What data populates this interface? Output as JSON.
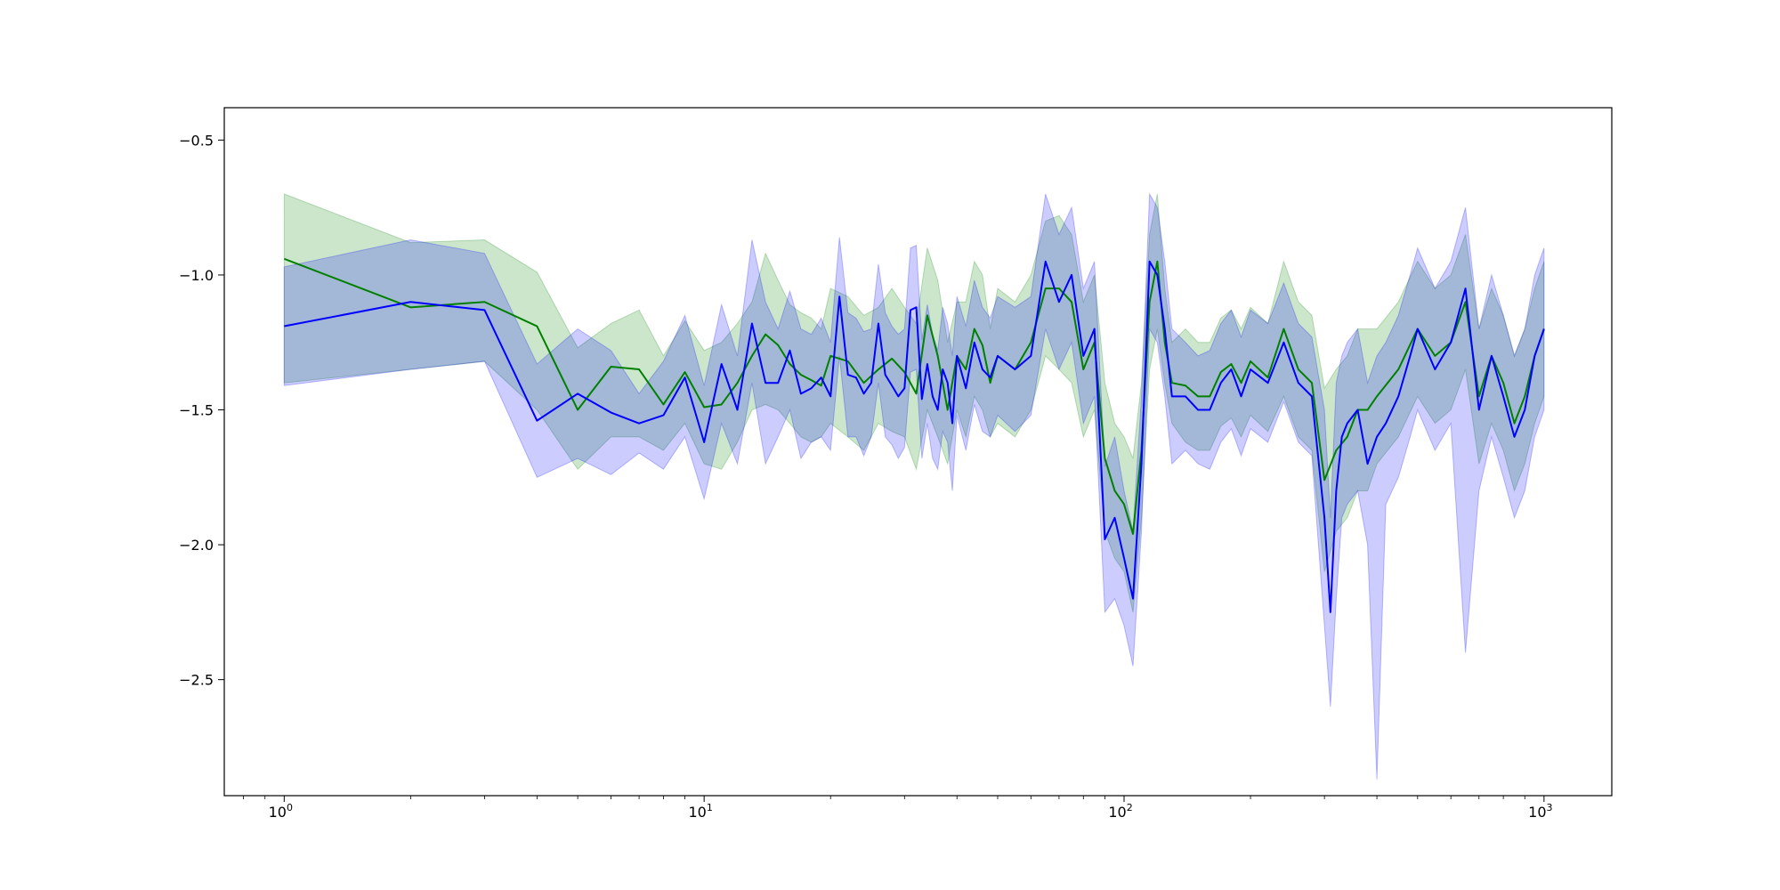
{
  "chart_data": {
    "type": "line",
    "xscale": "log",
    "xlim": [
      0.72,
      1450
    ],
    "ylim": [
      -2.93,
      -0.38
    ],
    "grid": false,
    "legend": "none",
    "title": "",
    "xlabel": "",
    "ylabel": "",
    "x_ticks": [
      {
        "base": "10",
        "exp": "0",
        "value": 1
      },
      {
        "base": "10",
        "exp": "1",
        "value": 10
      },
      {
        "base": "10",
        "exp": "2",
        "value": 100
      },
      {
        "base": "10",
        "exp": "3",
        "value": 1000
      }
    ],
    "y_ticks": [
      {
        "label": "−0.5",
        "value": -0.5
      },
      {
        "label": "−1.0",
        "value": -1.0
      },
      {
        "label": "−1.5",
        "value": -1.5
      },
      {
        "label": "−2.0",
        "value": -2.0
      },
      {
        "label": "−2.5",
        "value": -2.5
      }
    ],
    "colors": {
      "green_line": "#008000",
      "green_band": "#008000",
      "blue_line": "#0000ff",
      "blue_band": "#0000ff"
    },
    "series": [
      {
        "color": "green",
        "x": [
          1,
          2,
          3,
          4,
          5,
          6,
          7,
          8,
          9,
          10,
          11,
          12,
          13,
          14,
          15,
          16,
          17,
          18,
          19,
          20,
          22,
          24,
          26,
          28,
          30,
          32,
          34,
          36,
          38,
          40,
          42,
          44,
          46,
          48,
          50,
          55,
          60,
          65,
          70,
          75,
          80,
          85,
          90,
          95,
          100,
          105,
          110,
          115,
          120,
          125,
          130,
          140,
          150,
          160,
          170,
          180,
          190,
          200,
          220,
          240,
          260,
          280,
          300,
          320,
          340,
          360,
          380,
          400,
          450,
          500,
          550,
          600,
          650,
          700,
          750,
          800,
          850,
          900,
          950,
          1000
        ],
        "y": [
          -0.94,
          -1.12,
          -1.1,
          -1.19,
          -1.5,
          -1.34,
          -1.35,
          -1.48,
          -1.36,
          -1.49,
          -1.48,
          -1.4,
          -1.3,
          -1.22,
          -1.26,
          -1.33,
          -1.37,
          -1.39,
          -1.41,
          -1.3,
          -1.32,
          -1.4,
          -1.35,
          -1.31,
          -1.36,
          -1.44,
          -1.15,
          -1.3,
          -1.5,
          -1.3,
          -1.35,
          -1.2,
          -1.26,
          -1.4,
          -1.3,
          -1.35,
          -1.25,
          -1.05,
          -1.05,
          -1.1,
          -1.35,
          -1.25,
          -1.68,
          -1.8,
          -1.85,
          -1.96,
          -1.65,
          -1.1,
          -0.95,
          -1.25,
          -1.4,
          -1.41,
          -1.45,
          -1.45,
          -1.36,
          -1.33,
          -1.4,
          -1.32,
          -1.38,
          -1.2,
          -1.35,
          -1.4,
          -1.76,
          -1.65,
          -1.6,
          -1.5,
          -1.5,
          -1.45,
          -1.35,
          -1.2,
          -1.3,
          -1.25,
          -1.1,
          -1.45,
          -1.3,
          -1.4,
          -1.55,
          -1.45,
          -1.3,
          -1.2
        ],
        "lower": [
          -1.4,
          -1.35,
          -1.32,
          -1.5,
          -1.72,
          -1.6,
          -1.6,
          -1.65,
          -1.55,
          -1.7,
          -1.72,
          -1.62,
          -1.5,
          -1.48,
          -1.5,
          -1.55,
          -1.6,
          -1.62,
          -1.6,
          -1.55,
          -1.6,
          -1.65,
          -1.55,
          -1.58,
          -1.6,
          -1.72,
          -1.5,
          -1.6,
          -1.7,
          -1.5,
          -1.6,
          -1.45,
          -1.5,
          -1.6,
          -1.55,
          -1.6,
          -1.5,
          -1.3,
          -1.35,
          -1.4,
          -1.6,
          -1.5,
          -1.95,
          -2.05,
          -2.1,
          -2.25,
          -1.9,
          -1.35,
          -1.2,
          -1.4,
          -1.55,
          -1.62,
          -1.65,
          -1.65,
          -1.56,
          -1.53,
          -1.6,
          -1.52,
          -1.58,
          -1.45,
          -1.6,
          -1.65,
          -2.1,
          -1.95,
          -1.9,
          -1.8,
          -1.8,
          -1.7,
          -1.6,
          -1.45,
          -1.55,
          -1.5,
          -1.35,
          -1.7,
          -1.55,
          -1.65,
          -1.8,
          -1.7,
          -1.55,
          -1.45
        ],
        "upper": [
          -0.7,
          -0.88,
          -0.87,
          -0.99,
          -1.27,
          -1.18,
          -1.13,
          -1.3,
          -1.17,
          -1.28,
          -1.25,
          -1.18,
          -1.1,
          -0.92,
          -1.02,
          -1.11,
          -1.14,
          -1.16,
          -1.2,
          -1.05,
          -1.08,
          -1.15,
          -1.12,
          -1.05,
          -1.12,
          -1.18,
          -0.9,
          -1.02,
          -1.25,
          -1.1,
          -1.1,
          -0.95,
          -1.0,
          -1.2,
          -1.05,
          -1.1,
          -1.0,
          -0.8,
          -0.78,
          -0.85,
          -1.1,
          -1.0,
          -1.4,
          -1.55,
          -1.6,
          -1.68,
          -1.4,
          -0.85,
          -0.7,
          -1.05,
          -1.25,
          -1.2,
          -1.25,
          -1.25,
          -1.16,
          -1.13,
          -1.2,
          -1.12,
          -1.18,
          -0.95,
          -1.1,
          -1.15,
          -1.42,
          -1.35,
          -1.3,
          -1.2,
          -1.2,
          -1.2,
          -1.1,
          -0.95,
          -1.05,
          -1.0,
          -0.85,
          -1.2,
          -1.05,
          -1.15,
          -1.3,
          -1.2,
          -1.05,
          -0.95
        ]
      },
      {
        "color": "blue",
        "x": [
          1,
          2,
          3,
          4,
          5,
          6,
          7,
          8,
          9,
          10,
          11,
          12,
          13,
          14,
          15,
          16,
          17,
          18,
          19,
          20,
          21,
          22,
          23,
          24,
          25,
          26,
          27,
          28,
          29,
          30,
          31,
          32,
          33,
          34,
          35,
          36,
          37,
          38,
          39,
          40,
          42,
          44,
          46,
          48,
          50,
          55,
          60,
          65,
          70,
          75,
          80,
          85,
          90,
          95,
          100,
          105,
          110,
          115,
          120,
          125,
          130,
          140,
          150,
          160,
          170,
          180,
          190,
          200,
          220,
          240,
          260,
          280,
          300,
          310,
          320,
          330,
          340,
          360,
          380,
          400,
          420,
          450,
          480,
          500,
          550,
          600,
          650,
          700,
          750,
          800,
          850,
          900,
          950,
          1000
        ],
        "y": [
          -1.19,
          -1.1,
          -1.13,
          -1.54,
          -1.44,
          -1.51,
          -1.55,
          -1.52,
          -1.38,
          -1.62,
          -1.33,
          -1.5,
          -1.18,
          -1.4,
          -1.4,
          -1.28,
          -1.44,
          -1.42,
          -1.38,
          -1.45,
          -1.08,
          -1.37,
          -1.38,
          -1.44,
          -1.4,
          -1.18,
          -1.37,
          -1.41,
          -1.45,
          -1.42,
          -1.13,
          -1.12,
          -1.46,
          -1.33,
          -1.45,
          -1.5,
          -1.35,
          -1.4,
          -1.55,
          -1.3,
          -1.42,
          -1.25,
          -1.35,
          -1.38,
          -1.3,
          -1.35,
          -1.3,
          -0.95,
          -1.1,
          -1.0,
          -1.3,
          -1.2,
          -1.98,
          -1.9,
          -2.05,
          -2.2,
          -1.7,
          -0.95,
          -1.0,
          -1.2,
          -1.45,
          -1.45,
          -1.5,
          -1.5,
          -1.4,
          -1.35,
          -1.45,
          -1.35,
          -1.4,
          -1.25,
          -1.4,
          -1.45,
          -1.9,
          -2.25,
          -1.8,
          -1.6,
          -1.55,
          -1.5,
          -1.7,
          -1.6,
          -1.55,
          -1.45,
          -1.3,
          -1.2,
          -1.35,
          -1.25,
          -1.05,
          -1.5,
          -1.3,
          -1.45,
          -1.6,
          -1.5,
          -1.3,
          -1.2
        ],
        "lower": [
          -1.41,
          -1.35,
          -1.32,
          -1.75,
          -1.68,
          -1.74,
          -1.66,
          -1.72,
          -1.6,
          -1.83,
          -1.55,
          -1.7,
          -1.4,
          -1.7,
          -1.6,
          -1.5,
          -1.68,
          -1.62,
          -1.6,
          -1.65,
          -1.3,
          -1.6,
          -1.6,
          -1.67,
          -1.6,
          -1.4,
          -1.6,
          -1.63,
          -1.68,
          -1.64,
          -1.36,
          -1.35,
          -1.68,
          -1.55,
          -1.68,
          -1.72,
          -1.58,
          -1.62,
          -1.8,
          -1.52,
          -1.65,
          -1.48,
          -1.58,
          -1.6,
          -1.52,
          -1.58,
          -1.52,
          -1.2,
          -1.35,
          -1.25,
          -1.55,
          -1.45,
          -2.25,
          -2.2,
          -2.3,
          -2.45,
          -1.95,
          -1.2,
          -1.25,
          -1.45,
          -1.7,
          -1.65,
          -1.7,
          -1.72,
          -1.62,
          -1.57,
          -1.67,
          -1.57,
          -1.62,
          -1.47,
          -1.62,
          -1.67,
          -2.3,
          -2.6,
          -2.2,
          -1.9,
          -1.85,
          -1.8,
          -2.0,
          -2.87,
          -1.85,
          -1.75,
          -1.6,
          -1.5,
          -1.65,
          -1.55,
          -2.4,
          -1.8,
          -1.6,
          -1.75,
          -1.9,
          -1.8,
          -1.6,
          -1.5
        ],
        "upper": [
          -0.97,
          -0.87,
          -0.92,
          -1.33,
          -1.2,
          -1.28,
          -1.44,
          -1.32,
          -1.15,
          -1.41,
          -1.11,
          -1.3,
          -0.87,
          -1.1,
          -1.2,
          -1.06,
          -1.2,
          -1.22,
          -1.16,
          -1.25,
          -0.86,
          -1.14,
          -1.16,
          -1.21,
          -1.2,
          -0.96,
          -1.14,
          -1.19,
          -1.22,
          -1.2,
          -0.9,
          -0.89,
          -1.24,
          -1.11,
          -1.22,
          -1.28,
          -1.12,
          -1.18,
          -1.3,
          -1.08,
          -1.19,
          -1.02,
          -1.12,
          -1.16,
          -1.08,
          -1.12,
          -1.08,
          -0.7,
          -0.85,
          -0.75,
          -1.05,
          -0.95,
          -1.71,
          -1.6,
          -1.8,
          -1.95,
          -1.45,
          -0.7,
          -0.75,
          -0.95,
          -1.2,
          -1.25,
          -1.3,
          -1.28,
          -1.18,
          -1.13,
          -1.23,
          -1.13,
          -1.18,
          -1.03,
          -1.18,
          -1.23,
          -1.5,
          -1.9,
          -1.4,
          -1.3,
          -1.25,
          -1.2,
          -1.4,
          -1.3,
          -1.25,
          -1.15,
          -1.0,
          -0.9,
          -1.05,
          -0.95,
          -0.75,
          -1.2,
          -1.0,
          -1.15,
          -1.3,
          -1.2,
          -1.0,
          -0.9
        ]
      }
    ]
  }
}
